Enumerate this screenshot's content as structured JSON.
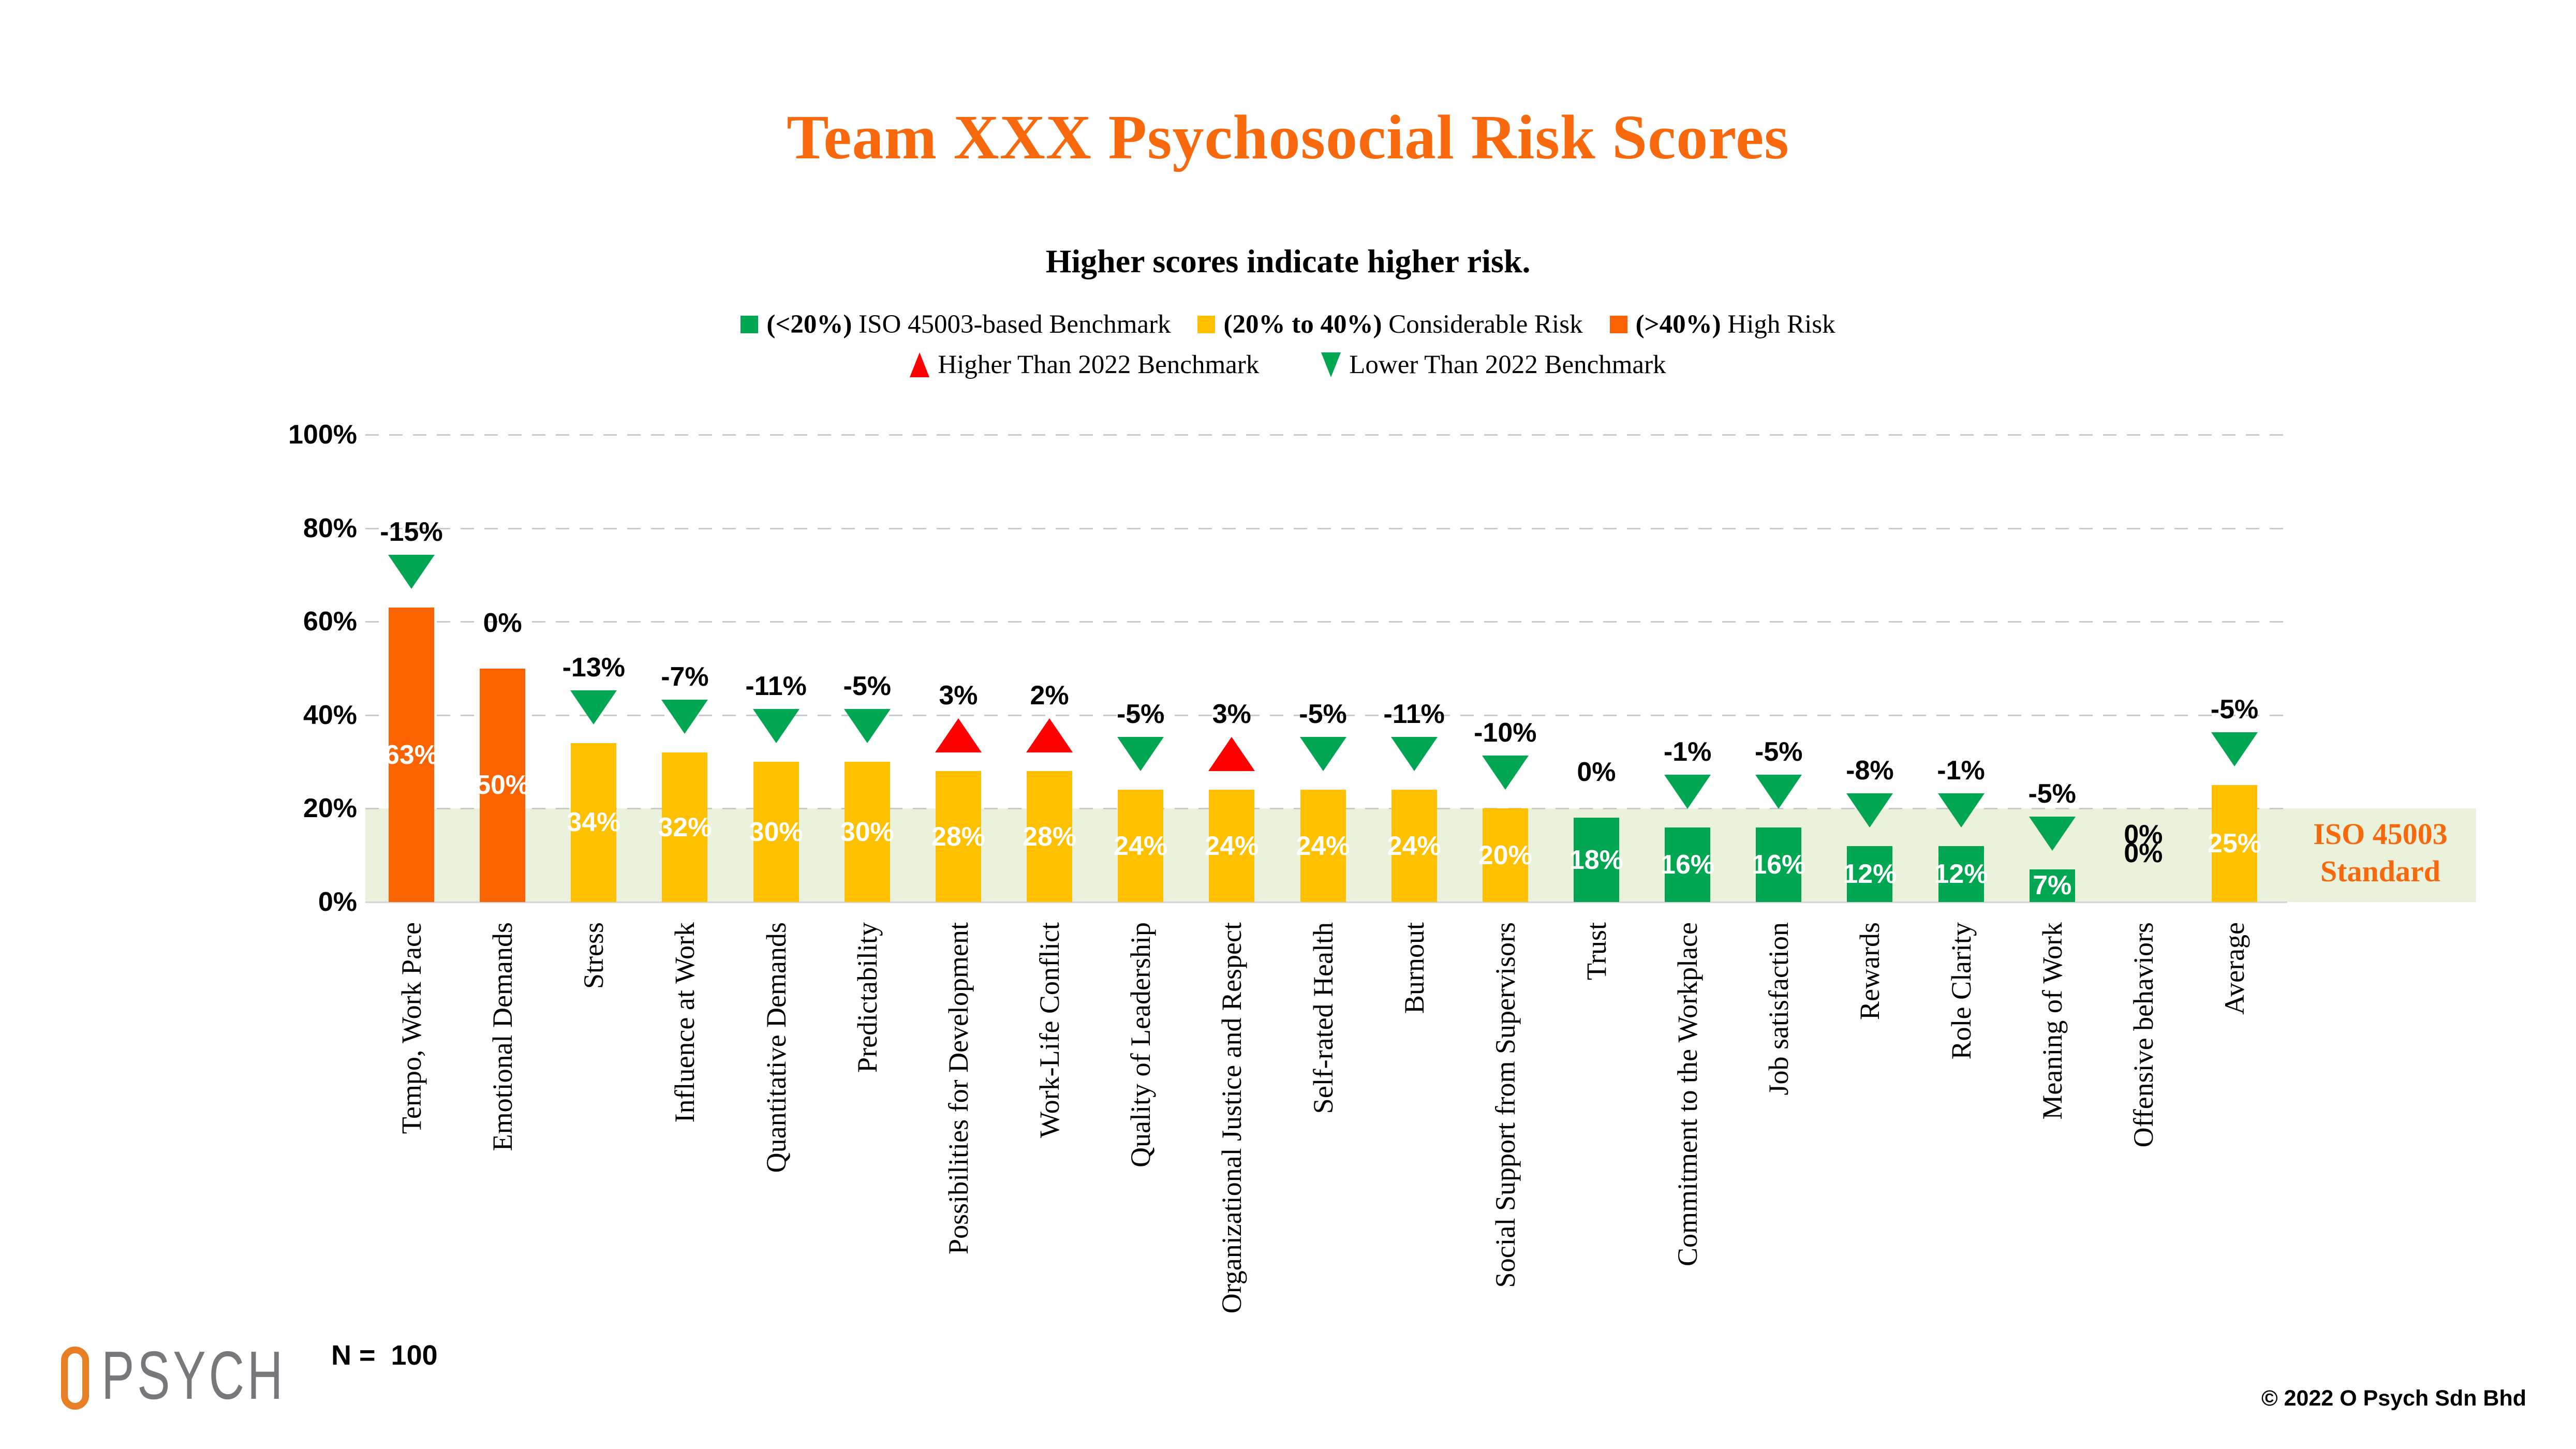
{
  "accent_color": "#F8690D",
  "header": {
    "title": "Team XXX Psychosocial Risk Scores",
    "subtitle": "Higher scores indicate higher risk."
  },
  "legend": {
    "risk_levels": [
      {
        "range": "(<20%)",
        "label": "ISO 45003-based Benchmark",
        "color": "#00A651"
      },
      {
        "range": "(20% to 40%)",
        "label": "Considerable Risk",
        "color": "#FFC000"
      },
      {
        "range": "(>40%)",
        "label": "High Risk",
        "color": "#FB6200"
      }
    ],
    "benchmark_markers": [
      {
        "label": "Higher Than 2022 Benchmark",
        "direction": "up",
        "color": "#FF0000"
      },
      {
        "label": "Lower Than 2022 Benchmark",
        "direction": "down",
        "color": "#00A651"
      }
    ]
  },
  "band_label": {
    "line1": "ISO 45003",
    "line2": "Standard"
  },
  "footer": {
    "sample_label": "N =  100",
    "copyright": "© 2022 O Psych Sdn Bhd",
    "logo_text": "PSYCH",
    "logo_mark": "orange-ring-o"
  },
  "chart_data": {
    "type": "bar",
    "title": "Team XXX Psychosocial Risk Scores",
    "subtitle": "Higher scores indicate higher risk.",
    "ylim": [
      0,
      100
    ],
    "y_ticks": [
      "100%",
      "80%",
      "60%",
      "40%",
      "20%",
      "0%"
    ],
    "grid": "horizontal-dashed",
    "legend_position": "top-center",
    "benchmark_band": {
      "from": 0,
      "to": 20,
      "label": "ISO 45003 Standard",
      "color": "#EAF2DC"
    },
    "categories": [
      "Tempo, Work Pace",
      "Emotional Demands",
      "Stress",
      "Influence at Work",
      "Quantitative Demands",
      "Predictability",
      "Possibilities for Development",
      "Work-Life Conflict",
      "Quality of Leadership",
      "Organizational Justice and Respect",
      "Self-rated Health",
      "Burnout",
      "Social Support from Supervisors",
      "Trust",
      "Commitment to the Workplace",
      "Job satisfaction",
      "Rewards",
      "Role Clarity",
      "Meaning of Work",
      "Offensive behaviors",
      "Average"
    ],
    "values": [
      63,
      50,
      34,
      32,
      30,
      30,
      28,
      28,
      24,
      24,
      24,
      24,
      20,
      18,
      16,
      16,
      12,
      12,
      7,
      0,
      25
    ],
    "value_labels": [
      "63%",
      "50%",
      "34%",
      "32%",
      "30%",
      "30%",
      "28%",
      "28%",
      "24%",
      "24%",
      "24%",
      "24%",
      "20%",
      "18%",
      "16%",
      "16%",
      "12%",
      "12%",
      "7%",
      "0%",
      "25%"
    ],
    "delta_vs_2022_benchmark": [
      -15,
      0,
      -13,
      -7,
      -11,
      -5,
      3,
      2,
      -5,
      3,
      -5,
      -11,
      -10,
      0,
      -1,
      -5,
      -8,
      -1,
      -5,
      0,
      -5
    ],
    "delta_labels": [
      "-15%",
      "0%",
      "-13%",
      "-7%",
      "-11%",
      "-5%",
      "3%",
      "2%",
      "-5%",
      "3%",
      "-5%",
      "-11%",
      "-10%",
      "0%",
      "-1%",
      "-5%",
      "-8%",
      "-1%",
      "-5%",
      "0%",
      "-5%"
    ],
    "bar_colors": [
      "#FB6200",
      "#FB6200",
      "#FFC000",
      "#FFC000",
      "#FFC000",
      "#FFC000",
      "#FFC000",
      "#FFC000",
      "#FFC000",
      "#FFC000",
      "#FFC000",
      "#FFC000",
      "#FFC000",
      "#00A651",
      "#00A651",
      "#00A651",
      "#00A651",
      "#00A651",
      "#00A651",
      "none",
      "#FFC000"
    ],
    "color_rule": {
      ">40": "#FB6200",
      "20-40": "#FFC000",
      "<20": "#00A651"
    }
  }
}
